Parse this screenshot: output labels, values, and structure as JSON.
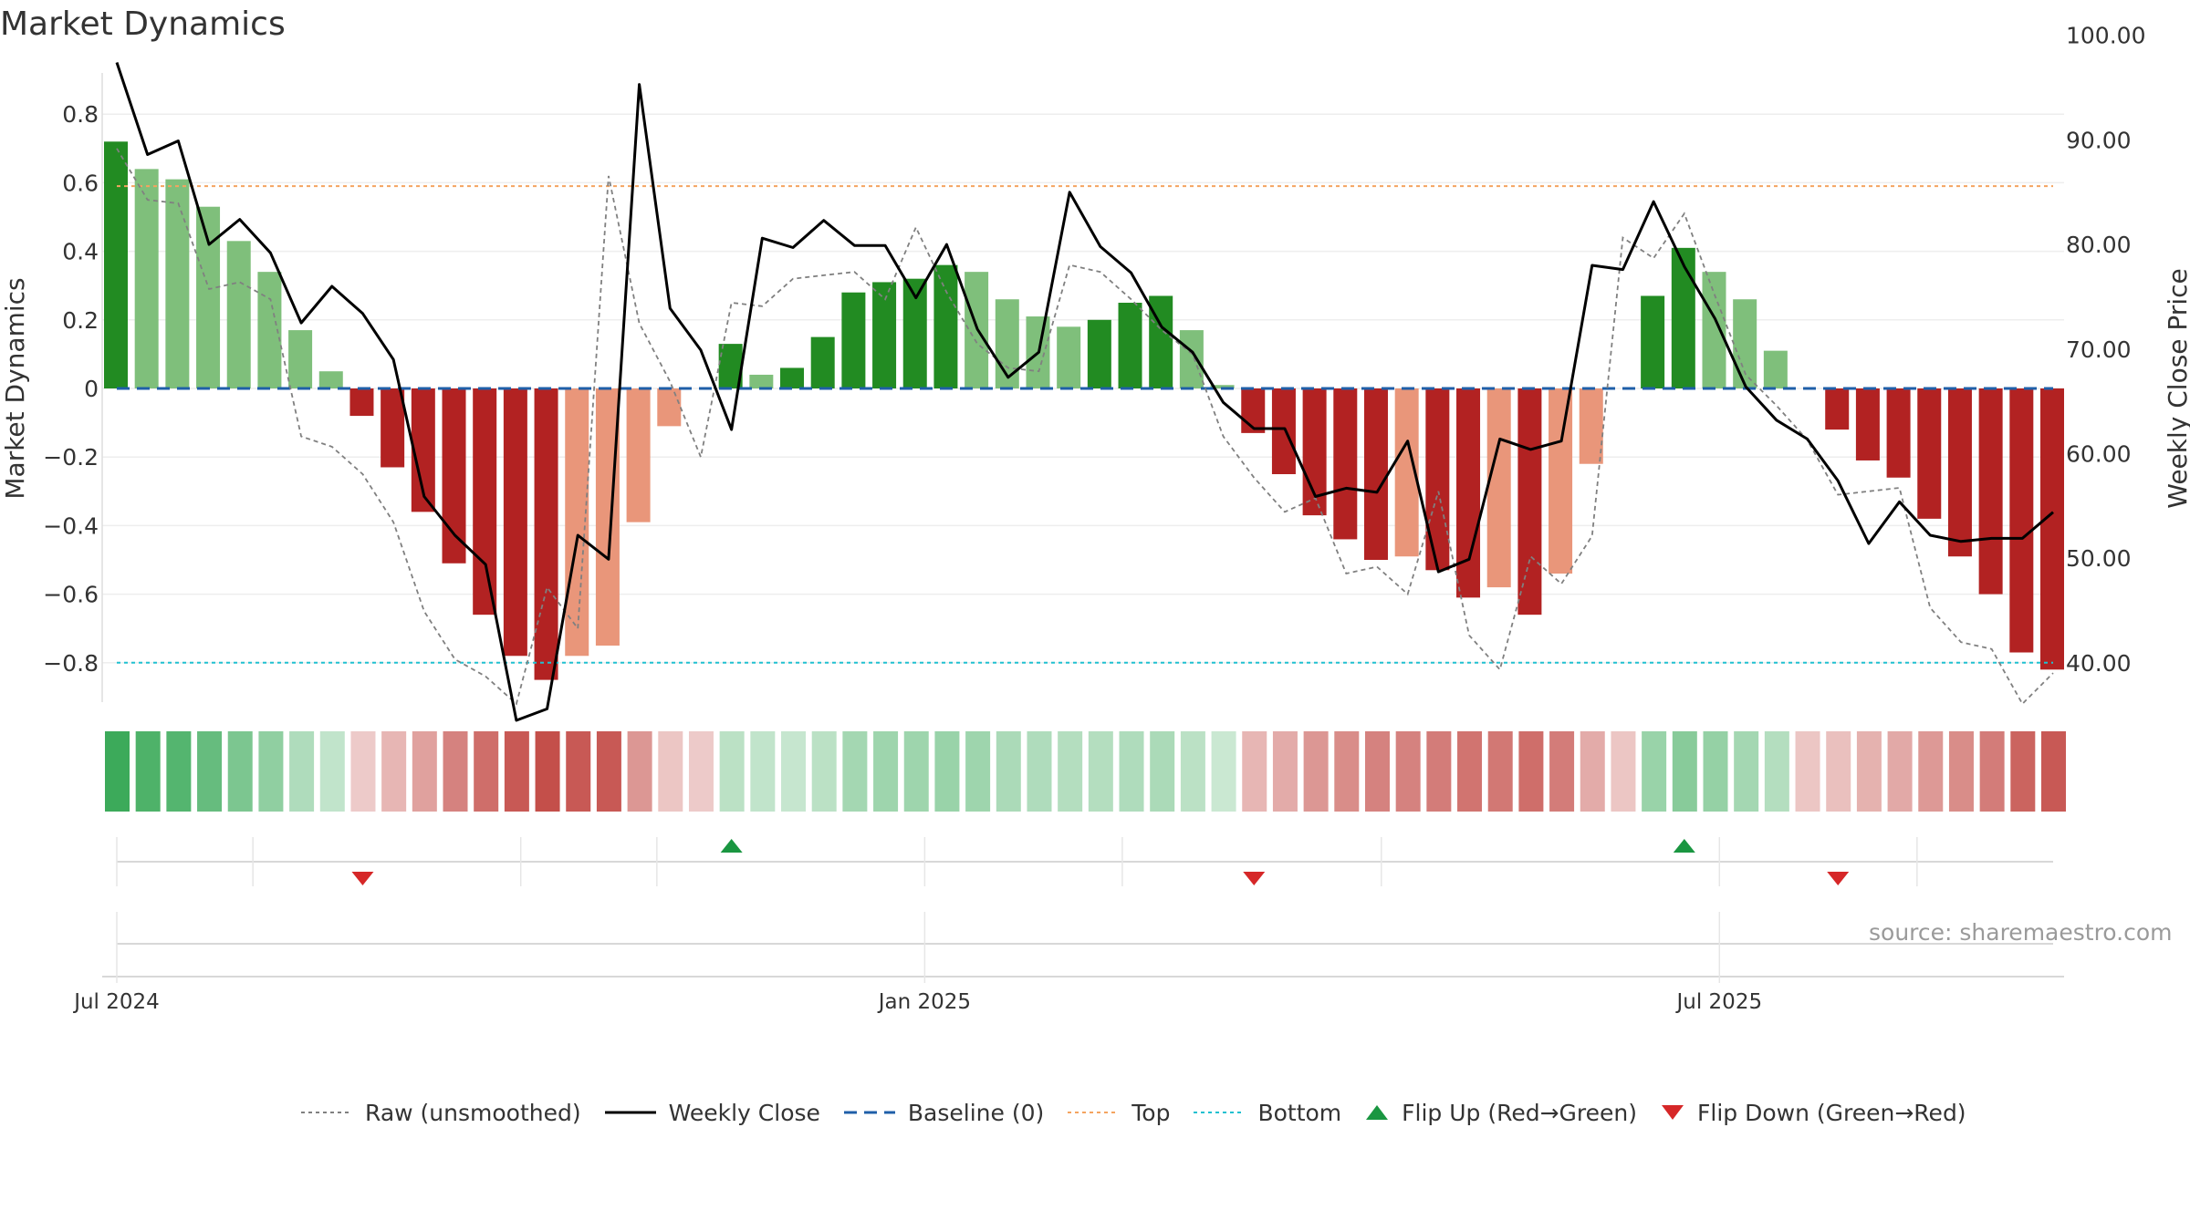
{
  "title": "Market Dynamics",
  "source": "source: sharemaestro.com",
  "colors": {
    "strong_green": "#228b22",
    "light_green": "#7fbf7b",
    "strong_red": "#b22222",
    "light_red": "#e9967a",
    "weekly_close": "#000000",
    "raw": "#808080",
    "baseline": "#1f5fa8",
    "top": "#f4a460",
    "bottom": "#20c0d0",
    "flip_up": "#1a9641",
    "flip_down": "#d62728"
  },
  "legend": [
    {
      "label": "Raw (unsmoothed)",
      "icon": "dashed-gray-line-icon",
      "kind": "line",
      "color": "#808080",
      "dash": "4 4",
      "width": 2
    },
    {
      "label": "Weekly Close",
      "icon": "solid-black-line-icon",
      "kind": "line",
      "color": "#000000",
      "dash": "",
      "width": 3
    },
    {
      "label": "Baseline (0)",
      "icon": "dashed-blue-line-icon",
      "kind": "line",
      "color": "#1f5fa8",
      "dash": "14 8",
      "width": 3
    },
    {
      "label": "Top",
      "icon": "dotted-orange-line-icon",
      "kind": "line",
      "color": "#f4a460",
      "dash": "4 4",
      "width": 2
    },
    {
      "label": "Bottom",
      "icon": "dotted-cyan-line-icon",
      "kind": "line",
      "color": "#20c0d0",
      "dash": "4 4",
      "width": 2
    },
    {
      "label": "Flip Up (Red→Green)",
      "icon": "triangle-up-icon",
      "kind": "up",
      "color": "#1a9641"
    },
    {
      "label": "Flip Down (Green→Red)",
      "icon": "triangle-down-icon",
      "kind": "down",
      "color": "#d62728"
    }
  ],
  "chart_data": {
    "type": "bar",
    "title": "Market Dynamics",
    "ylabel": "Market Dynamics",
    "y2label": "Weekly Close Price",
    "ylim": [
      -0.92,
      0.92
    ],
    "y2lim": [
      30.7,
      101.7
    ],
    "yticks": [
      -0.8,
      -0.6,
      -0.4,
      -0.2,
      0,
      0.2,
      0.4,
      0.6,
      0.8
    ],
    "ytick_labels": [
      "−0.8",
      "−0.6",
      "−0.4",
      "−0.2",
      "0",
      "0.2",
      "0.4",
      "0.6",
      "0.8"
    ],
    "y2ticks": [
      40,
      50,
      60,
      70,
      80,
      90,
      100
    ],
    "y2tick_labels": [
      "40.00",
      "50.00",
      "60.00",
      "70.00",
      "80.00",
      "90.00",
      "100.00"
    ],
    "x_start": "2024-07-01",
    "x_end": "2025-09-15",
    "xticks": [
      "2024-07-01",
      "2025-01-01",
      "2025-07-01"
    ],
    "xtick_labels": [
      "Jul 2024",
      "Jan 2025",
      "Jul 2025"
    ],
    "minor_xticks": [
      "2024-08-01",
      "2024-10-01",
      "2024-11-01",
      "2025-02-15",
      "2025-04-15",
      "2025-08-15"
    ],
    "top": 0.59,
    "bottom": -0.8,
    "baseline": 0,
    "grid": true,
    "legend_position": "bottom",
    "bars": [
      {
        "date": "2024-07-01",
        "value": 0.72,
        "shade": "strong",
        "strip": 0.72
      },
      {
        "date": "2024-07-08",
        "value": 0.64,
        "shade": "light",
        "strip": 0.64
      },
      {
        "date": "2024-07-15",
        "value": 0.61,
        "shade": "light",
        "strip": 0.61
      },
      {
        "date": "2024-07-22",
        "value": 0.53,
        "shade": "light",
        "strip": 0.53
      },
      {
        "date": "2024-07-29",
        "value": 0.43,
        "shade": "light",
        "strip": 0.43
      },
      {
        "date": "2024-08-05",
        "value": 0.34,
        "shade": "light",
        "strip": 0.34
      },
      {
        "date": "2024-08-12",
        "value": 0.17,
        "shade": "light",
        "strip": 0.2
      },
      {
        "date": "2024-08-19",
        "value": 0.05,
        "shade": "light",
        "strip": 0.12
      },
      {
        "date": "2024-08-26",
        "value": -0.08,
        "shade": "strong",
        "strip": -0.1
      },
      {
        "date": "2024-09-02",
        "value": -0.23,
        "shade": "strong",
        "strip": -0.2
      },
      {
        "date": "2024-09-09",
        "value": -0.36,
        "shade": "strong",
        "strip": -0.3
      },
      {
        "date": "2024-09-16",
        "value": -0.51,
        "shade": "strong",
        "strip": -0.45
      },
      {
        "date": "2024-09-23",
        "value": -0.66,
        "shade": "strong",
        "strip": -0.55
      },
      {
        "date": "2024-09-30",
        "value": -0.78,
        "shade": "strong",
        "strip": -0.65
      },
      {
        "date": "2024-10-07",
        "value": -0.85,
        "shade": "strong",
        "strip": -0.7
      },
      {
        "date": "2024-10-14",
        "value": -0.78,
        "shade": "light",
        "strip": -0.65
      },
      {
        "date": "2024-10-21",
        "value": -0.75,
        "shade": "light",
        "strip": -0.65
      },
      {
        "date": "2024-10-28",
        "value": -0.39,
        "shade": "light",
        "strip": -0.35
      },
      {
        "date": "2024-11-04",
        "value": -0.11,
        "shade": "light",
        "strip": -0.12
      },
      {
        "date": "2024-11-11",
        "value": 0,
        "shade": "light",
        "strip": -0.1
      },
      {
        "date": "2024-11-18",
        "value": 0.13,
        "shade": "strong",
        "strip": 0.15
      },
      {
        "date": "2024-11-25",
        "value": 0.04,
        "shade": "light",
        "strip": 0.12
      },
      {
        "date": "2024-12-02",
        "value": 0.06,
        "shade": "strong",
        "strip": 0.1
      },
      {
        "date": "2024-12-09",
        "value": 0.15,
        "shade": "strong",
        "strip": 0.15
      },
      {
        "date": "2024-12-16",
        "value": 0.28,
        "shade": "strong",
        "strip": 0.25
      },
      {
        "date": "2024-12-23",
        "value": 0.31,
        "shade": "strong",
        "strip": 0.28
      },
      {
        "date": "2024-12-30",
        "value": 0.32,
        "shade": "strong",
        "strip": 0.28
      },
      {
        "date": "2025-01-06",
        "value": 0.36,
        "shade": "strong",
        "strip": 0.3
      },
      {
        "date": "2025-01-13",
        "value": 0.34,
        "shade": "light",
        "strip": 0.28
      },
      {
        "date": "2025-01-20",
        "value": 0.26,
        "shade": "light",
        "strip": 0.22
      },
      {
        "date": "2025-01-27",
        "value": 0.21,
        "shade": "light",
        "strip": 0.2
      },
      {
        "date": "2025-02-03",
        "value": 0.18,
        "shade": "light",
        "strip": 0.18
      },
      {
        "date": "2025-02-10",
        "value": 0.2,
        "shade": "strong",
        "strip": 0.18
      },
      {
        "date": "2025-02-17",
        "value": 0.25,
        "shade": "strong",
        "strip": 0.2
      },
      {
        "date": "2025-02-24",
        "value": 0.27,
        "shade": "strong",
        "strip": 0.22
      },
      {
        "date": "2025-03-03",
        "value": 0.17,
        "shade": "light",
        "strip": 0.15
      },
      {
        "date": "2025-03-10",
        "value": 0.01,
        "shade": "light",
        "strip": 0.08
      },
      {
        "date": "2025-03-17",
        "value": -0.13,
        "shade": "strong",
        "strip": -0.2
      },
      {
        "date": "2025-03-24",
        "value": -0.25,
        "shade": "strong",
        "strip": -0.25
      },
      {
        "date": "2025-03-31",
        "value": -0.37,
        "shade": "strong",
        "strip": -0.35
      },
      {
        "date": "2025-04-07",
        "value": -0.44,
        "shade": "strong",
        "strip": -0.4
      },
      {
        "date": "2025-04-14",
        "value": -0.5,
        "shade": "strong",
        "strip": -0.45
      },
      {
        "date": "2025-04-21",
        "value": -0.49,
        "shade": "light",
        "strip": -0.45
      },
      {
        "date": "2025-04-28",
        "value": -0.53,
        "shade": "strong",
        "strip": -0.48
      },
      {
        "date": "2025-05-05",
        "value": -0.61,
        "shade": "strong",
        "strip": -0.52
      },
      {
        "date": "2025-05-12",
        "value": -0.58,
        "shade": "light",
        "strip": -0.5
      },
      {
        "date": "2025-05-19",
        "value": -0.66,
        "shade": "strong",
        "strip": -0.55
      },
      {
        "date": "2025-05-26",
        "value": -0.54,
        "shade": "light",
        "strip": -0.48
      },
      {
        "date": "2025-06-02",
        "value": -0.22,
        "shade": "light",
        "strip": -0.25
      },
      {
        "date": "2025-06-09",
        "value": 0,
        "shade": "light",
        "strip": -0.12
      },
      {
        "date": "2025-06-16",
        "value": 0.27,
        "shade": "strong",
        "strip": 0.3
      },
      {
        "date": "2025-06-23",
        "value": 0.41,
        "shade": "strong",
        "strip": 0.38
      },
      {
        "date": "2025-06-30",
        "value": 0.34,
        "shade": "light",
        "strip": 0.32
      },
      {
        "date": "2025-07-07",
        "value": 0.26,
        "shade": "light",
        "strip": 0.25
      },
      {
        "date": "2025-07-14",
        "value": 0.11,
        "shade": "light",
        "strip": 0.18
      },
      {
        "date": "2025-07-21",
        "value": 0,
        "shade": "light",
        "strip": -0.12
      },
      {
        "date": "2025-07-28",
        "value": -0.12,
        "shade": "strong",
        "strip": -0.15
      },
      {
        "date": "2025-08-04",
        "value": -0.21,
        "shade": "strong",
        "strip": -0.22
      },
      {
        "date": "2025-08-11",
        "value": -0.26,
        "shade": "strong",
        "strip": -0.26
      },
      {
        "date": "2025-08-18",
        "value": -0.38,
        "shade": "strong",
        "strip": -0.34
      },
      {
        "date": "2025-08-25",
        "value": -0.49,
        "shade": "strong",
        "strip": -0.4
      },
      {
        "date": "2025-09-01",
        "value": -0.6,
        "shade": "strong",
        "strip": -0.48
      },
      {
        "date": "2025-09-08",
        "value": -0.77,
        "shade": "strong",
        "strip": -0.6
      },
      {
        "date": "2025-09-15",
        "value": -0.82,
        "shade": "strong",
        "strip": -0.65
      }
    ],
    "weekly_close": [
      97.4,
      88.6,
      89.9,
      80.0,
      82.4,
      79.2,
      72.5,
      76.0,
      73.4,
      69.0,
      55.9,
      52.2,
      49.4,
      34.5,
      35.6,
      52.2,
      49.9,
      95.3,
      73.9,
      69.9,
      62.3,
      80.6,
      79.7,
      82.3,
      79.9,
      79.9,
      74.9,
      80.0,
      71.9,
      67.3,
      69.7,
      85.0,
      79.8,
      77.3,
      72.1,
      69.7,
      64.9,
      62.4,
      62.4,
      55.9,
      56.7,
      56.3,
      61.2,
      48.7,
      49.9,
      61.4,
      60.4,
      61.2,
      78.0,
      77.6,
      84.1,
      77.9,
      72.9,
      66.4,
      63.2,
      61.4,
      57.4,
      51.4,
      55.4,
      52.2,
      51.6,
      51.9,
      51.9,
      54.4
    ],
    "raw": [
      0.7,
      0.55,
      0.54,
      0.29,
      0.31,
      0.26,
      -0.14,
      -0.17,
      -0.25,
      -0.39,
      -0.65,
      -0.79,
      -0.84,
      -0.92,
      -0.58,
      -0.7,
      0.62,
      0.19,
      0.02,
      -0.2,
      0.25,
      0.24,
      0.32,
      0.33,
      0.34,
      0.26,
      0.47,
      0.28,
      0.13,
      0.06,
      0.05,
      0.36,
      0.34,
      0.26,
      0.17,
      0.1,
      -0.14,
      -0.26,
      -0.36,
      -0.32,
      -0.54,
      -0.52,
      -0.6,
      -0.3,
      -0.72,
      -0.82,
      -0.49,
      -0.57,
      -0.43,
      0.44,
      0.38,
      0.51,
      0.27,
      0.04,
      -0.05,
      -0.15,
      -0.31,
      -0.3,
      -0.29,
      -0.64,
      -0.74,
      -0.76,
      -0.92,
      -0.83
    ],
    "flip_up": [
      "2024-11-18",
      "2025-06-23"
    ],
    "flip_down": [
      "2024-08-26",
      "2025-03-17",
      "2025-07-28"
    ]
  }
}
